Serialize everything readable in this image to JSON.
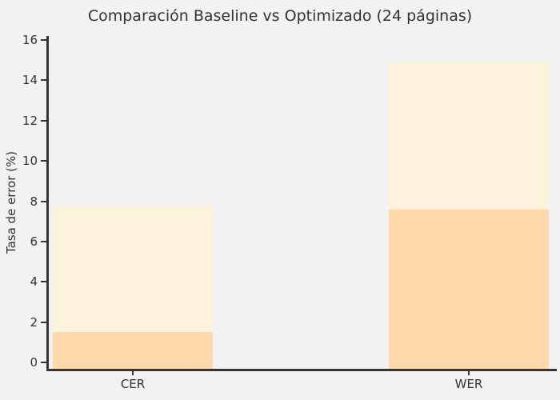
{
  "figure": {
    "background": "#f2f2f2",
    "axis_color": "#363636",
    "text_color": "#333333"
  },
  "chart_data": {
    "type": "bar",
    "title": "Comparación Baseline vs Optimizado (24 páginas)",
    "xlabel": "",
    "ylabel": "Tasa de error (%)",
    "categories": [
      "CER",
      "WER"
    ],
    "series": [
      {
        "name": "Baseline",
        "color": "#fdf3dc",
        "values": [
          7.8,
          14.9
        ]
      },
      {
        "name": "Optimizado",
        "color": "#fdd9ab",
        "values": [
          1.5,
          7.6
        ]
      }
    ],
    "bars_overlap_same_x": true,
    "yticks": [
      0,
      2,
      4,
      6,
      8,
      10,
      12,
      14,
      16
    ],
    "ylim": [
      0,
      16.3
    ],
    "grid": false,
    "legend_position": "none"
  }
}
